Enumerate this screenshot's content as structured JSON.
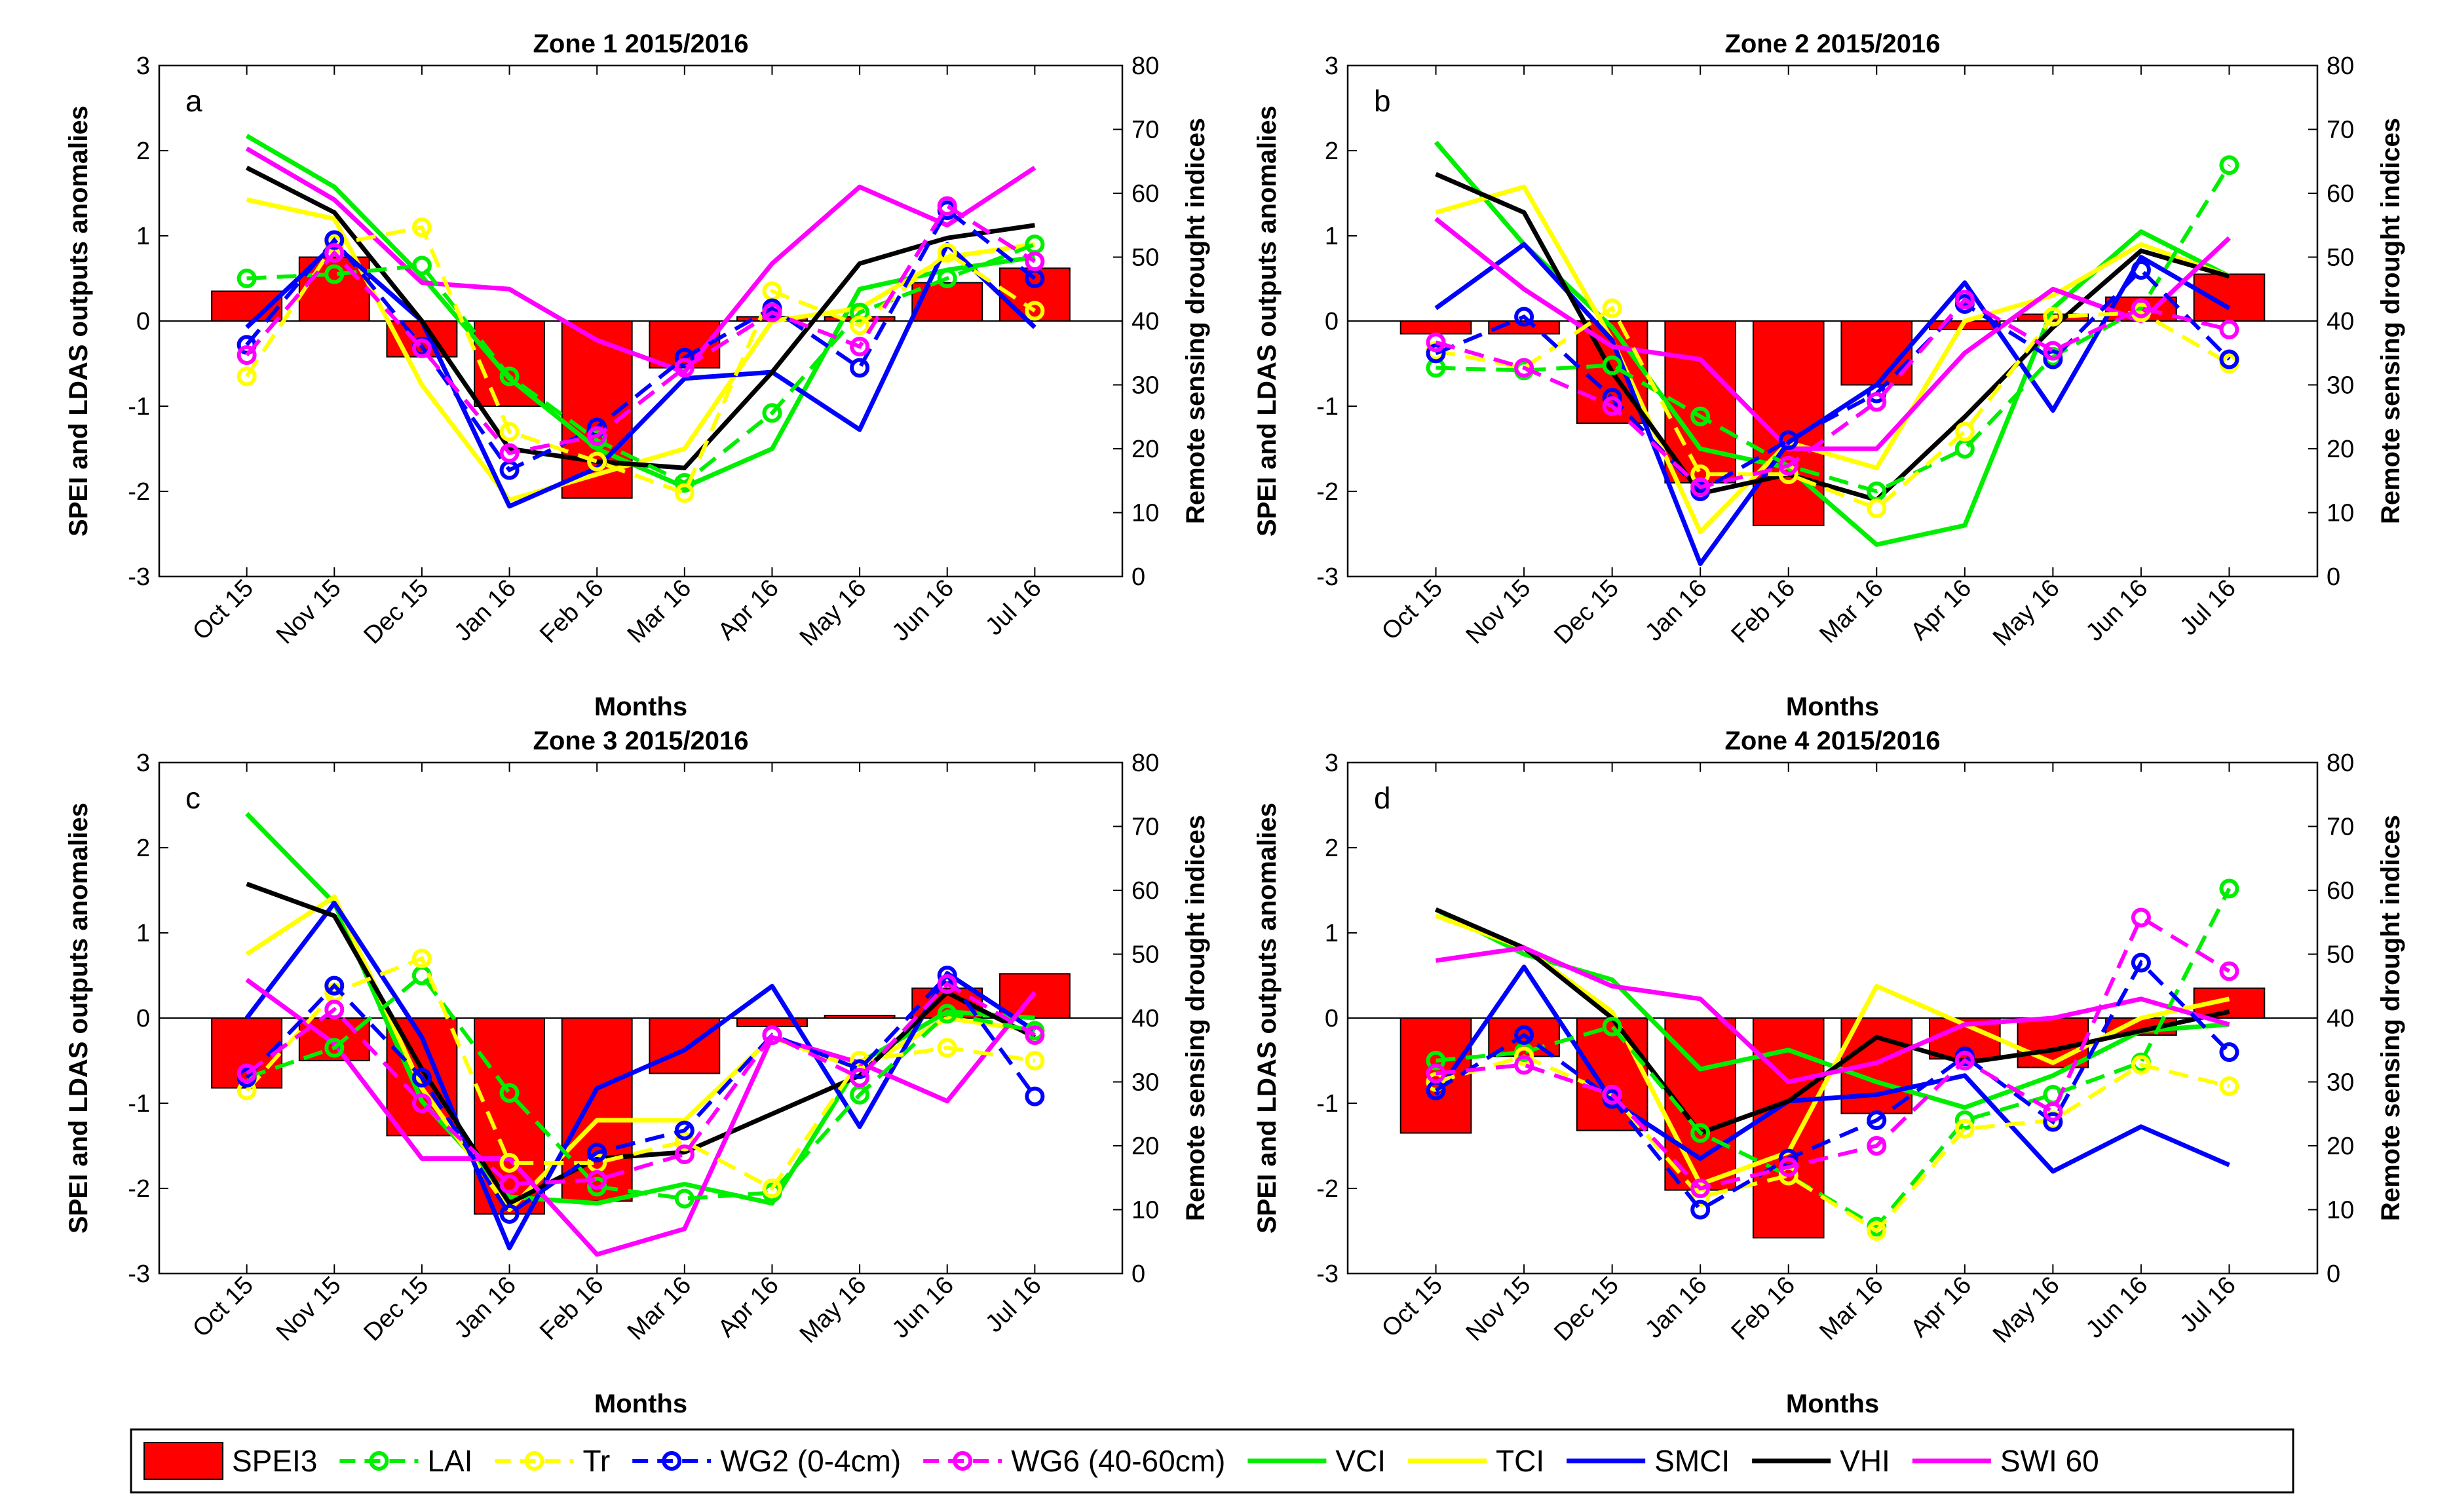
{
  "figure": {
    "xlabel": "Months",
    "ylabel_left": "SPEI and LDAS outputs anomalies",
    "ylabel_right": "Remote sensing drought indices",
    "months": [
      "Oct 15",
      "Nov 15",
      "Dec 15",
      "Jan 16",
      "Feb 16",
      "Mar 16",
      "Apr 16",
      "May 16",
      "Jun 16",
      "Jul 16"
    ],
    "left_ticks": [
      "3",
      "2",
      "1",
      "0",
      "-1",
      "-2",
      "-3"
    ],
    "right_ticks": [
      "80",
      "70",
      "60",
      "50",
      "40",
      "30",
      "20",
      "10",
      "0"
    ]
  },
  "legend": {
    "entries": [
      {
        "label": "SPEI3",
        "kind": "bar",
        "color": "#ff0000"
      },
      {
        "label": "LAI",
        "kind": "dashed-marker",
        "color": "#00ee00"
      },
      {
        "label": "Tr",
        "kind": "dashed-marker",
        "color": "#ffff00"
      },
      {
        "label": "WG2 (0-4cm)",
        "kind": "dashed-marker",
        "color": "#0000ff"
      },
      {
        "label": "WG6 (40-60cm)",
        "kind": "dashed-marker",
        "color": "#ff00ff"
      },
      {
        "label": "VCI",
        "kind": "solid",
        "color": "#00ee00"
      },
      {
        "label": "TCI",
        "kind": "solid",
        "color": "#ffff00"
      },
      {
        "label": "SMCI",
        "kind": "solid",
        "color": "#0000ff"
      },
      {
        "label": "VHI",
        "kind": "solid",
        "color": "#000000"
      },
      {
        "label": "SWI 60",
        "kind": "solid",
        "color": "#ff00ff"
      }
    ]
  },
  "chart_data": [
    {
      "type": "bar+line",
      "panel_letter": "a",
      "title": "Zone 1 2015/2016",
      "categories": [
        "Oct 15",
        "Nov 15",
        "Dec 15",
        "Jan 16",
        "Feb 16",
        "Mar 16",
        "Apr 16",
        "May 16",
        "Jun 16",
        "Jul 16"
      ],
      "ylim_left": [
        -3,
        3
      ],
      "ylim_right": [
        0,
        80
      ],
      "bars": {
        "name": "SPEI3",
        "values": [
          0.35,
          0.75,
          -0.42,
          -1.0,
          -2.08,
          -0.55,
          0.05,
          0.05,
          0.45,
          0.62
        ]
      },
      "left_series": [
        {
          "name": "LAI",
          "values": [
            0.5,
            0.55,
            0.65,
            -0.65,
            -1.4,
            -1.9,
            -1.08,
            0.1,
            0.5,
            0.9
          ]
        },
        {
          "name": "Tr",
          "values": [
            -0.65,
            0.9,
            1.1,
            -1.3,
            -1.65,
            -2.02,
            0.35,
            -0.05,
            0.8,
            0.12
          ]
        },
        {
          "name": "WG2 (0-4cm)",
          "values": [
            -0.28,
            0.95,
            -0.3,
            -1.75,
            -1.25,
            -0.43,
            0.15,
            -0.55,
            1.3,
            0.5
          ]
        },
        {
          "name": "WG6 (40-60cm)",
          "values": [
            -0.4,
            0.8,
            -0.32,
            -1.55,
            -1.35,
            -0.55,
            0.1,
            -0.3,
            1.35,
            0.7
          ]
        }
      ],
      "right_series": [
        {
          "name": "VCI",
          "values": [
            69,
            61,
            47,
            31,
            20,
            14,
            20,
            45,
            48,
            50
          ]
        },
        {
          "name": "TCI",
          "values": [
            59,
            56,
            30,
            12,
            16,
            20,
            40,
            42,
            50,
            52
          ]
        },
        {
          "name": "SMCI",
          "values": [
            39,
            52,
            40,
            11,
            17,
            31,
            32,
            23,
            52,
            39
          ]
        },
        {
          "name": "VHI",
          "values": [
            64,
            57,
            40,
            20,
            18,
            17,
            32,
            49,
            53,
            55
          ]
        },
        {
          "name": "SWI 60",
          "values": [
            67,
            59,
            46,
            45,
            37,
            32,
            49,
            61,
            55,
            64
          ]
        }
      ]
    },
    {
      "type": "bar+line",
      "panel_letter": "b",
      "title": "Zone 2 2015/2016",
      "categories": [
        "Oct 15",
        "Nov 15",
        "Dec 15",
        "Jan 16",
        "Feb 16",
        "Mar 16",
        "Apr 16",
        "May 16",
        "Jun 16",
        "Jul 16"
      ],
      "ylim_left": [
        -3,
        3
      ],
      "ylim_right": [
        0,
        80
      ],
      "bars": {
        "name": "SPEI3",
        "values": [
          -0.15,
          -0.15,
          -1.2,
          -1.9,
          -2.4,
          -0.75,
          -0.1,
          0.08,
          0.28,
          0.55
        ]
      },
      "left_series": [
        {
          "name": "LAI",
          "values": [
            -0.55,
            -0.58,
            -0.52,
            -1.12,
            -1.7,
            -2.0,
            -1.5,
            -0.42,
            0.15,
            1.83
          ]
        },
        {
          "name": "Tr",
          "values": [
            -0.35,
            -0.55,
            0.15,
            -1.8,
            -1.8,
            -2.2,
            -1.3,
            0.05,
            0.1,
            -0.5
          ]
        },
        {
          "name": "WG2 (0-4cm)",
          "values": [
            -0.38,
            0.05,
            -0.9,
            -2.0,
            -1.4,
            -0.85,
            0.2,
            -0.45,
            0.6,
            -0.45
          ]
        },
        {
          "name": "WG6 (40-60cm)",
          "values": [
            -0.25,
            -0.55,
            -1.0,
            -1.95,
            -1.7,
            -0.95,
            0.25,
            -0.35,
            0.15,
            -0.1
          ]
        }
      ],
      "right_series": [
        {
          "name": "VCI",
          "values": [
            68,
            52,
            39,
            20,
            17,
            5,
            8,
            42,
            54,
            47
          ]
        },
        {
          "name": "TCI",
          "values": [
            57,
            61,
            37,
            7,
            21,
            17,
            40,
            44,
            52,
            47
          ]
        },
        {
          "name": "SMCI",
          "values": [
            42,
            52,
            37,
            2,
            21,
            30,
            46,
            26,
            50,
            42
          ]
        },
        {
          "name": "VHI",
          "values": [
            63,
            57,
            32,
            13,
            16,
            12,
            25,
            39,
            51,
            47
          ]
        },
        {
          "name": "SWI 60",
          "values": [
            56,
            45,
            36,
            34,
            20,
            20,
            35,
            45,
            40,
            53
          ]
        }
      ]
    },
    {
      "type": "bar+line",
      "panel_letter": "c",
      "title": "Zone 3 2015/2016",
      "categories": [
        "Oct 15",
        "Nov 15",
        "Dec 15",
        "Jan 16",
        "Feb 16",
        "Mar 16",
        "Apr 16",
        "May 16",
        "Jun 16",
        "Jul 16"
      ],
      "ylim_left": [
        -3,
        3
      ],
      "ylim_right": [
        0,
        80
      ],
      "bars": {
        "name": "SPEI3",
        "values": [
          -0.82,
          -0.5,
          -1.38,
          -2.3,
          -2.15,
          -0.65,
          -0.1,
          0.03,
          0.35,
          0.52
        ]
      },
      "left_series": [
        {
          "name": "LAI",
          "values": [
            -0.7,
            -0.35,
            0.5,
            -0.88,
            -1.98,
            -2.12,
            -2.05,
            -0.9,
            0.05,
            -0.15
          ]
        },
        {
          "name": "Tr",
          "values": [
            -0.85,
            0.3,
            0.7,
            -1.7,
            -1.7,
            -1.45,
            -2.0,
            -0.5,
            -0.35,
            -0.5
          ]
        },
        {
          "name": "WG2 (0-4cm)",
          "values": [
            -0.7,
            0.38,
            -0.7,
            -2.3,
            -1.58,
            -1.32,
            -0.2,
            -0.6,
            0.5,
            -0.92
          ]
        },
        {
          "name": "WG6 (40-60cm)",
          "values": [
            -0.65,
            0.1,
            -1.0,
            -1.95,
            -1.9,
            -1.6,
            -0.2,
            -0.7,
            0.4,
            -0.2
          ]
        }
      ],
      "right_series": [
        {
          "name": "VCI",
          "values": [
            72,
            58,
            27,
            12,
            11,
            14,
            11,
            33,
            41,
            40
          ]
        },
        {
          "name": "TCI",
          "values": [
            50,
            59,
            29,
            10,
            24,
            24,
            37,
            32,
            40,
            38
          ]
        },
        {
          "name": "SMCI",
          "values": [
            40,
            58,
            37,
            4,
            29,
            35,
            45,
            23,
            47,
            38
          ]
        },
        {
          "name": "VHI",
          "values": [
            61,
            56,
            32,
            11,
            18,
            19,
            25,
            31,
            44,
            37
          ]
        },
        {
          "name": "SWI 60",
          "values": [
            46,
            36,
            18,
            18,
            3,
            7,
            37,
            33,
            27,
            44
          ]
        }
      ]
    },
    {
      "type": "bar+line",
      "panel_letter": "d",
      "title": "Zone 4 2015/2016",
      "categories": [
        "Oct 15",
        "Nov 15",
        "Dec 15",
        "Jan 16",
        "Feb 16",
        "Mar 16",
        "Apr 16",
        "May 16",
        "Jun 16",
        "Jul 16"
      ],
      "ylim_left": [
        -3,
        3
      ],
      "ylim_right": [
        0,
        80
      ],
      "bars": {
        "name": "SPEI3",
        "values": [
          -1.35,
          -0.45,
          -1.32,
          -2.02,
          -2.58,
          -1.12,
          -0.48,
          -0.58,
          -0.2,
          0.35
        ]
      },
      "left_series": [
        {
          "name": "LAI",
          "values": [
            -0.5,
            -0.4,
            -0.1,
            -1.35,
            -1.85,
            -2.45,
            -1.2,
            -0.9,
            -0.52,
            1.52
          ]
        },
        {
          "name": "Tr",
          "values": [
            -0.75,
            -0.45,
            -0.9,
            -2.1,
            -1.85,
            -2.5,
            -1.3,
            -1.2,
            -0.55,
            -0.8
          ]
        },
        {
          "name": "WG2 (0-4cm)",
          "values": [
            -0.85,
            -0.2,
            -0.95,
            -2.25,
            -1.65,
            -1.2,
            -0.45,
            -1.22,
            0.65,
            -0.4
          ]
        },
        {
          "name": "WG6 (40-60cm)",
          "values": [
            -0.65,
            -0.55,
            -0.9,
            -2.0,
            -1.75,
            -1.5,
            -0.5,
            -1.1,
            1.18,
            0.55
          ]
        }
      ],
      "right_series": [
        {
          "name": "VCI",
          "values": [
            57,
            50,
            46,
            32,
            35,
            30,
            26,
            31,
            38,
            39
          ]
        },
        {
          "name": "TCI",
          "values": [
            56,
            51,
            41,
            14,
            19,
            45,
            39,
            33,
            40,
            43
          ]
        },
        {
          "name": "SMCI",
          "values": [
            28,
            48,
            27,
            18,
            27,
            28,
            31,
            16,
            23,
            17
          ]
        },
        {
          "name": "VHI",
          "values": [
            57,
            51,
            40,
            22,
            27,
            37,
            33,
            35,
            38,
            41
          ]
        },
        {
          "name": "SWI 60",
          "values": [
            49,
            51,
            45,
            43,
            30,
            33,
            39,
            40,
            43,
            39
          ]
        }
      ]
    }
  ]
}
